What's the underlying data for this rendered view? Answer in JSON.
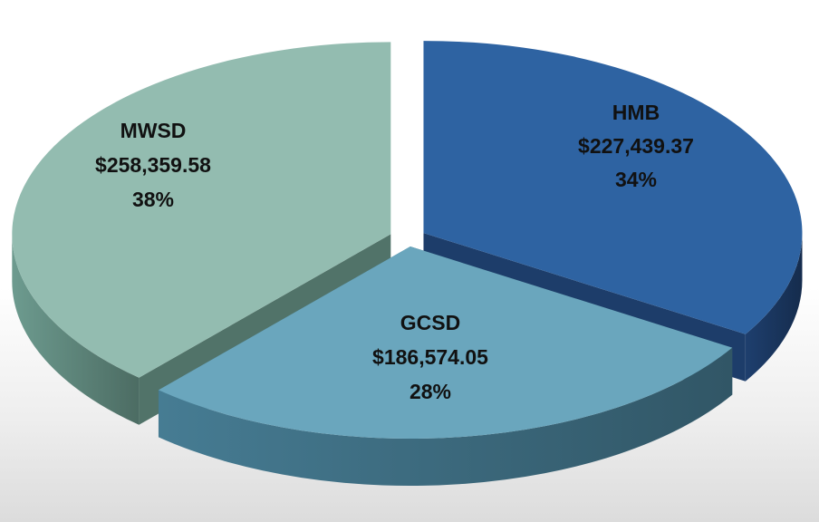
{
  "chart_data": {
    "type": "pie",
    "style": "3d-exploded",
    "slices": [
      {
        "name": "HMB",
        "amount": "$227,439.37",
        "value": 227439.37,
        "percent": "34%",
        "color": "#2e63a2",
        "side_color": "#1a3760"
      },
      {
        "name": "GCSD",
        "amount": "$186,574.05",
        "value": 186574.05,
        "percent": "28%",
        "color": "#6aa6bd",
        "side_color": "#3d6c80"
      },
      {
        "name": "MWSD",
        "amount": "$258,359.58",
        "value": 258359.58,
        "percent": "38%",
        "color": "#93bcb0",
        "side_color": "#5f877c"
      }
    ]
  }
}
